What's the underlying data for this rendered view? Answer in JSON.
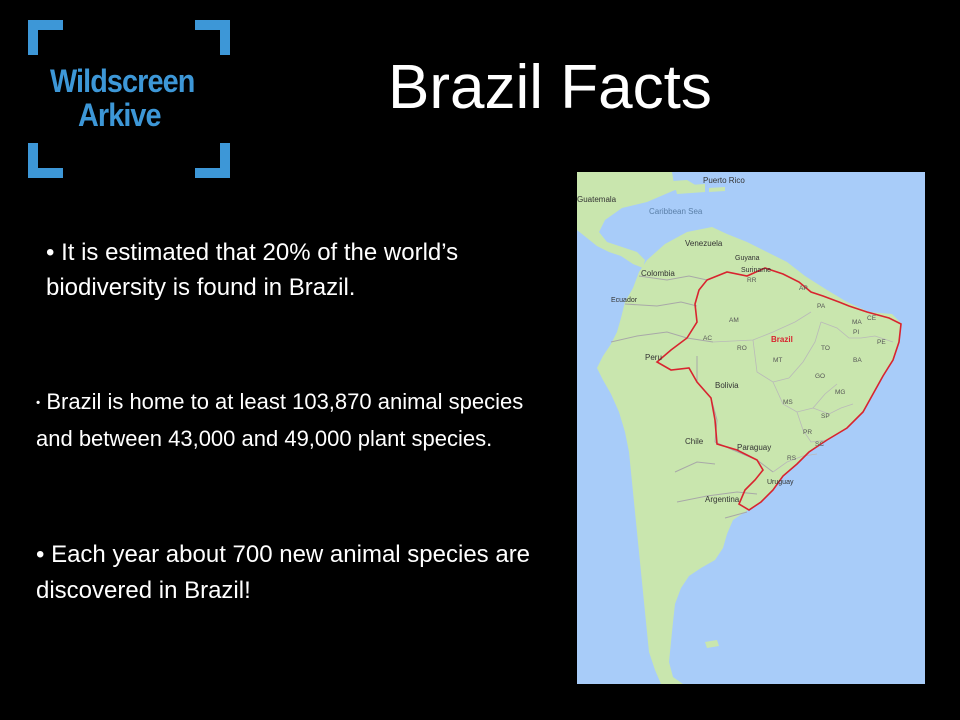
{
  "logo": {
    "line1": "Wildscreen",
    "line2": "Arkive",
    "color": "#3d97d7"
  },
  "slide": {
    "title": "Brazil Facts",
    "bullets": [
      "• It is estimated that 20% of the world’s biodiversity is found in Brazil.",
      "Brazil is home to at least 103,870 animal species and between 43,000 and 49,000 plant species.",
      "• Each year about 700 new animal species are discovered in Brazil!"
    ],
    "bullet_marker_small": "•"
  },
  "map": {
    "ocean_color": "#a8ccf9",
    "land_color": "#c9e6ae",
    "highlight_color": "#d8242f",
    "labels": {
      "puerto_rico": "Puerto Rico",
      "guatemala": "Guatemala",
      "caribbean_sea": "Caribbean Sea",
      "venezuela": "Venezuela",
      "guyana": "Guyana",
      "suriname": "Suriname",
      "colombia": "Colombia",
      "ecuador": "Ecuador",
      "peru": "Peru",
      "bolivia": "Bolivia",
      "brazil": "Brazil",
      "paraguay": "Paraguay",
      "chile": "Chile",
      "argentina": "Argentina",
      "uruguay": "Uruguay",
      "am": "AM",
      "pa": "PA",
      "ma": "MA",
      "ce": "CE",
      "pi": "PI",
      "pe": "PE",
      "ac": "AC",
      "ro": "RO",
      "mt": "MT",
      "to": "TO",
      "ba": "BA",
      "go": "GO",
      "mg": "MG",
      "ms": "MS",
      "sp": "SP",
      "pr": "PR",
      "sc": "SC",
      "rs": "RS",
      "rr": "RR",
      "ap": "AP"
    }
  }
}
